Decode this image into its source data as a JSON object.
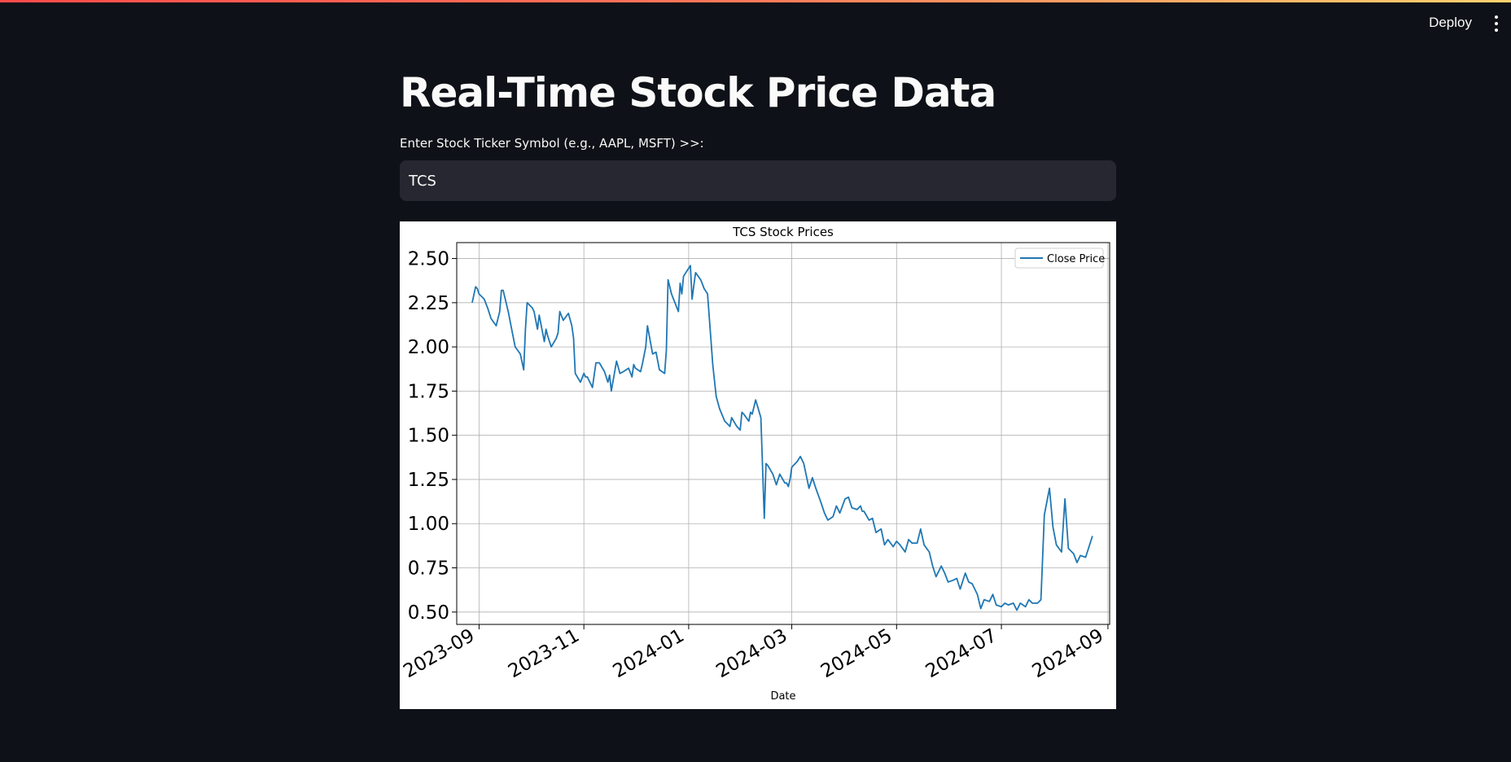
{
  "header": {
    "deploy_label": "Deploy"
  },
  "page": {
    "title": "Real-Time Stock Price Data",
    "ticker_label": "Enter Stock Ticker Symbol (e.g., AAPL, MSFT) >>:",
    "ticker_value": "TCS"
  },
  "colors": {
    "background": "#0e1117",
    "input_bg": "#262730",
    "line": "#1f77b4",
    "accent": "#ff4b4b"
  },
  "icons": {
    "menu": "vertical-ellipsis-icon"
  },
  "chart_data": {
    "type": "line",
    "title": "TCS Stock Prices",
    "xlabel": "Date",
    "ylabel": "",
    "legend": "top-right",
    "grid": true,
    "xlim": [
      "2023-08-19",
      "2024-09-02"
    ],
    "ylim": [
      0.43,
      2.59
    ],
    "x_ticks": [
      "2023-09",
      "2023-11",
      "2024-01",
      "2024-03",
      "2024-05",
      "2024-07",
      "2024-09"
    ],
    "y_ticks": [
      "0.50",
      "0.75",
      "1.00",
      "1.25",
      "1.50",
      "1.75",
      "2.00",
      "2.25",
      "2.50"
    ],
    "series": [
      {
        "name": "Close Price",
        "x": [
          "2023-08-28",
          "2023-08-30",
          "2023-08-31",
          "2023-09-01",
          "2023-09-04",
          "2023-09-06",
          "2023-09-08",
          "2023-09-11",
          "2023-09-13",
          "2023-09-14",
          "2023-09-15",
          "2023-09-18",
          "2023-09-20",
          "2023-09-22",
          "2023-09-25",
          "2023-09-27",
          "2023-09-28",
          "2023-09-29",
          "2023-10-02",
          "2023-10-03",
          "2023-10-05",
          "2023-10-06",
          "2023-10-09",
          "2023-10-10",
          "2023-10-11",
          "2023-10-13",
          "2023-10-16",
          "2023-10-17",
          "2023-10-18",
          "2023-10-20",
          "2023-10-23",
          "2023-10-25",
          "2023-10-26",
          "2023-10-27",
          "2023-10-30",
          "2023-11-01",
          "2023-11-02",
          "2023-11-03",
          "2023-11-06",
          "2023-11-08",
          "2023-11-09",
          "2023-11-10",
          "2023-11-13",
          "2023-11-15",
          "2023-11-16",
          "2023-11-17",
          "2023-11-20",
          "2023-11-22",
          "2023-11-24",
          "2023-11-27",
          "2023-11-29",
          "2023-11-30",
          "2023-12-01",
          "2023-12-04",
          "2023-12-05",
          "2023-12-07",
          "2023-12-08",
          "2023-12-11",
          "2023-12-13",
          "2023-12-15",
          "2023-12-18",
          "2023-12-19",
          "2023-12-20",
          "2023-12-22",
          "2023-12-26",
          "2023-12-27",
          "2023-12-28",
          "2023-12-29",
          "2024-01-02",
          "2024-01-03",
          "2024-01-04",
          "2024-01-05",
          "2024-01-08",
          "2024-01-10",
          "2024-01-12",
          "2024-01-15",
          "2024-01-17",
          "2024-01-19",
          "2024-01-22",
          "2024-01-24",
          "2024-01-25",
          "2024-01-26",
          "2024-01-29",
          "2024-01-31",
          "2024-02-01",
          "2024-02-02",
          "2024-02-05",
          "2024-02-06",
          "2024-02-07",
          "2024-02-09",
          "2024-02-12",
          "2024-02-14",
          "2024-02-15",
          "2024-02-16",
          "2024-02-19",
          "2024-02-21",
          "2024-02-23",
          "2024-02-26",
          "2024-02-27",
          "2024-02-28",
          "2024-02-29",
          "2024-03-01",
          "2024-03-04",
          "2024-03-06",
          "2024-03-08",
          "2024-03-11",
          "2024-03-13",
          "2024-03-15",
          "2024-03-18",
          "2024-03-20",
          "2024-03-22",
          "2024-03-25",
          "2024-03-27",
          "2024-03-29",
          "2024-04-01",
          "2024-04-03",
          "2024-04-05",
          "2024-04-08",
          "2024-04-10",
          "2024-04-11",
          "2024-04-12",
          "2024-04-15",
          "2024-04-17",
          "2024-04-19",
          "2024-04-22",
          "2024-04-24",
          "2024-04-26",
          "2024-04-29",
          "2024-05-01",
          "2024-05-03",
          "2024-05-06",
          "2024-05-08",
          "2024-05-10",
          "2024-05-13",
          "2024-05-15",
          "2024-05-17",
          "2024-05-20",
          "2024-05-22",
          "2024-05-24",
          "2024-05-27",
          "2024-05-29",
          "2024-05-31",
          "2024-06-03",
          "2024-06-05",
          "2024-06-07",
          "2024-06-10",
          "2024-06-12",
          "2024-06-14",
          "2024-06-17",
          "2024-06-19",
          "2024-06-21",
          "2024-06-24",
          "2024-06-26",
          "2024-06-28",
          "2024-07-01",
          "2024-07-03",
          "2024-07-05",
          "2024-07-08",
          "2024-07-10",
          "2024-07-12",
          "2024-07-15",
          "2024-07-17",
          "2024-07-19",
          "2024-07-22",
          "2024-07-24",
          "2024-07-26",
          "2024-07-29",
          "2024-07-31",
          "2024-08-02",
          "2024-08-05",
          "2024-08-07",
          "2024-08-09",
          "2024-08-12",
          "2024-08-14",
          "2024-08-16",
          "2024-08-19",
          "2024-08-21",
          "2024-08-23"
        ],
        "y": [
          2.25,
          2.34,
          2.33,
          2.3,
          2.27,
          2.22,
          2.16,
          2.12,
          2.2,
          2.32,
          2.32,
          2.2,
          2.1,
          2.0,
          1.96,
          1.87,
          2.1,
          2.25,
          2.22,
          2.2,
          2.1,
          2.18,
          2.03,
          2.1,
          2.06,
          2.0,
          2.05,
          2.08,
          2.2,
          2.15,
          2.19,
          2.12,
          2.05,
          1.85,
          1.8,
          1.85,
          1.83,
          1.83,
          1.77,
          1.91,
          1.91,
          1.91,
          1.86,
          1.8,
          1.84,
          1.75,
          1.92,
          1.85,
          1.86,
          1.88,
          1.83,
          1.9,
          1.88,
          1.86,
          1.9,
          2.0,
          2.12,
          1.96,
          1.97,
          1.87,
          1.85,
          1.98,
          2.38,
          2.3,
          2.2,
          2.36,
          2.3,
          2.4,
          2.46,
          2.27,
          2.35,
          2.42,
          2.38,
          2.33,
          2.3,
          1.9,
          1.72,
          1.65,
          1.58,
          1.56,
          1.55,
          1.6,
          1.55,
          1.53,
          1.63,
          1.62,
          1.58,
          1.63,
          1.62,
          1.7,
          1.6,
          1.03,
          1.34,
          1.33,
          1.28,
          1.22,
          1.28,
          1.23,
          1.23,
          1.21,
          1.25,
          1.32,
          1.35,
          1.38,
          1.34,
          1.2,
          1.26,
          1.2,
          1.12,
          1.06,
          1.02,
          1.04,
          1.1,
          1.06,
          1.14,
          1.15,
          1.09,
          1.08,
          1.1,
          1.07,
          1.07,
          1.02,
          1.03,
          0.95,
          0.97,
          0.88,
          0.91,
          0.87,
          0.9,
          0.88,
          0.84,
          0.91,
          0.89,
          0.89,
          0.97,
          0.88,
          0.84,
          0.76,
          0.7,
          0.76,
          0.72,
          0.67,
          0.68,
          0.69,
          0.63,
          0.72,
          0.67,
          0.66,
          0.6,
          0.52,
          0.57,
          0.56,
          0.6,
          0.54,
          0.53,
          0.55,
          0.54,
          0.55,
          0.51,
          0.55,
          0.53,
          0.57,
          0.55,
          0.55,
          0.57,
          1.05,
          1.2,
          0.98,
          0.88,
          0.84,
          1.14,
          0.86,
          0.83,
          0.78,
          0.82,
          0.81,
          0.87,
          0.93
        ]
      }
    ]
  }
}
